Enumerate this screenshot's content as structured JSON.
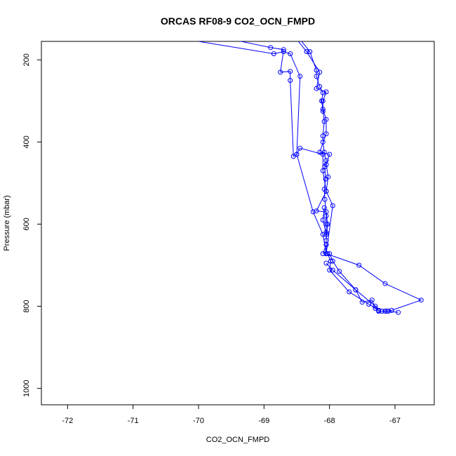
{
  "chart_data": {
    "type": "line",
    "title": "ORCAS RF08-9 CO2_OCN_FMPD",
    "xlabel": "CO2_OCN_FMPD",
    "ylabel": "Pressure (mbar)",
    "xlim": [
      -72.4,
      -66.4
    ],
    "ylim": [
      1040,
      155
    ],
    "y_inverted": true,
    "grid": false,
    "xticks": [
      -72,
      -71,
      -70,
      -69,
      -68,
      -67
    ],
    "yticks": [
      200,
      400,
      600,
      800,
      1000
    ],
    "series_color": "#0000ff",
    "marker": "open-circle",
    "series": [
      {
        "values": [
          [
            -68.1,
            672
          ],
          [
            -68.05,
            650
          ],
          [
            -68.05,
            620
          ],
          [
            -68.05,
            600
          ],
          [
            -68.05,
            580
          ],
          [
            -68.07,
            540
          ],
          [
            -68.08,
            515
          ],
          [
            -68.06,
            490
          ],
          [
            -68.07,
            460
          ],
          [
            -68.05,
            445
          ],
          [
            -68.08,
            425
          ],
          [
            -68.1,
            400
          ],
          [
            -68.1,
            385
          ],
          [
            -68.08,
            350
          ],
          [
            -68.1,
            325
          ],
          [
            -68.12,
            300
          ],
          [
            -68.1,
            280
          ],
          [
            -68.15,
            265
          ],
          [
            -68.2,
            240
          ],
          [
            -68.2,
            225
          ],
          [
            -68.3,
            180
          ],
          [
            -68.45,
            150
          ]
        ]
      },
      {
        "values": [
          [
            -68.05,
            672
          ],
          [
            -68.05,
            640
          ],
          [
            -68.03,
            600
          ],
          [
            -68.05,
            570
          ],
          [
            -68.2,
            568
          ],
          [
            -68.05,
            520
          ],
          [
            -68.02,
            485
          ],
          [
            -68.05,
            455
          ],
          [
            -68.0,
            430
          ],
          [
            -68.15,
            425
          ],
          [
            -68.05,
            380
          ],
          [
            -68.05,
            345
          ],
          [
            -68.1,
            320
          ],
          [
            -68.1,
            300
          ],
          [
            -68.05,
            278
          ],
          [
            -68.2,
            270
          ],
          [
            -68.15,
            230
          ],
          [
            -68.35,
            180
          ],
          [
            -68.5,
            150
          ]
        ]
      },
      {
        "values": [
          [
            -68.05,
            672
          ],
          [
            -67.95,
            555
          ],
          [
            -68.05,
            520
          ],
          [
            -68.1,
            470
          ],
          [
            -68.1,
            430
          ],
          [
            -68.45,
            415
          ],
          [
            -68.5,
            430
          ],
          [
            -68.55,
            435
          ],
          [
            -68.6,
            250
          ],
          [
            -68.6,
            228
          ],
          [
            -68.75,
            230
          ],
          [
            -68.7,
            175
          ],
          [
            -68.9,
            170
          ],
          [
            -69.5,
            150
          ]
        ]
      },
      {
        "values": [
          [
            -68.05,
            672
          ],
          [
            -68.1,
            625
          ],
          [
            -68.25,
            570
          ],
          [
            -68.5,
            430
          ],
          [
            -68.45,
            240
          ],
          [
            -68.6,
            185
          ],
          [
            -68.7,
            180
          ],
          [
            -68.85,
            185
          ],
          [
            -70,
            155
          ]
        ]
      },
      {
        "values": [
          [
            -68.05,
            672
          ],
          [
            -67.55,
            700
          ],
          [
            -67.15,
            745
          ],
          [
            -66.6,
            785
          ],
          [
            -67.05,
            810
          ],
          [
            -67.1,
            812
          ],
          [
            -67.15,
            812
          ],
          [
            -67.2,
            812
          ],
          [
            -67.25,
            812
          ],
          [
            -67.3,
            805
          ],
          [
            -67.35,
            785
          ],
          [
            -67.5,
            790
          ],
          [
            -67.6,
            760
          ],
          [
            -67.95,
            712
          ],
          [
            -68.05,
            695
          ]
        ]
      },
      {
        "values": [
          [
            -68.0,
            672
          ],
          [
            -67.95,
            690
          ],
          [
            -67.85,
            715
          ],
          [
            -67.6,
            760
          ],
          [
            -67.3,
            800
          ],
          [
            -67.25,
            812
          ],
          [
            -67.2,
            812
          ],
          [
            -67.15,
            812
          ],
          [
            -67.12,
            812
          ],
          [
            -66.95,
            815
          ]
        ]
      },
      {
        "values": [
          [
            -68.03,
            672
          ],
          [
            -67.98,
            690
          ],
          [
            -68.0,
            712
          ],
          [
            -67.7,
            765
          ],
          [
            -67.4,
            795
          ],
          [
            -67.25,
            810
          ]
        ]
      },
      {
        "values": [
          [
            -68.05,
            672
          ],
          [
            -68.05,
            650
          ],
          [
            -68.05,
            625
          ],
          [
            -68.1,
            590
          ],
          [
            -68.08,
            560
          ]
        ]
      }
    ]
  }
}
